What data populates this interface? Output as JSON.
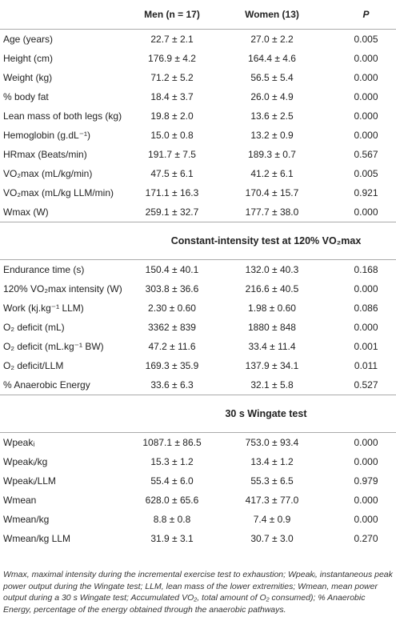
{
  "table": {
    "header": [
      "Men (n = 17)",
      "Women (13)",
      "P"
    ],
    "sections": [
      {
        "rows": [
          [
            "Age (years)",
            "22.7 ± 2.1",
            "27.0 ± 2.2",
            "0.005"
          ],
          [
            "Height (cm)",
            "176.9 ± 4.2",
            "164.4 ± 4.6",
            "0.000"
          ],
          [
            "Weight (kg)",
            "71.2 ± 5.2",
            "56.5 ± 5.4",
            "0.000"
          ],
          [
            "% body fat",
            "18.4 ± 3.7",
            "26.0 ± 4.9",
            "0.000"
          ],
          [
            "Lean mass of both legs (kg)",
            "19.8 ± 2.0",
            "13.6 ± 2.5",
            "0.000"
          ],
          [
            "Hemoglobin (g.dL⁻¹)",
            "15.0 ± 0.8",
            "13.2 ± 0.9",
            "0.000"
          ],
          [
            "HRmax (Beats/min)",
            "191.7 ± 7.5",
            "189.3 ± 0.7",
            "0.567"
          ],
          [
            "VO₂max (mL/kg/min)",
            "47.5 ± 6.1",
            "41.2 ± 6.1",
            "0.005"
          ],
          [
            "VO₂max (mL/kg LLM/min)",
            "171.1 ± 16.3",
            "170.4 ± 15.7",
            "0.921"
          ],
          [
            "Wmax (W)",
            "259.1 ± 32.7",
            "177.7 ± 38.0",
            "0.000"
          ]
        ]
      },
      {
        "title": "Constant-intensity test at 120% VO₂max",
        "rows": [
          [
            "Endurance time (s)",
            "150.4 ± 40.1",
            "132.0 ± 40.3",
            "0.168"
          ],
          [
            "120% VO₂max intensity (W)",
            "303.8 ± 36.6",
            "216.6 ± 40.5",
            "0.000"
          ],
          [
            "Work (kj.kg⁻¹ LLM)",
            "2.30 ± 0.60",
            "1.98 ± 0.60",
            "0.086"
          ],
          [
            "O₂ deficit (mL)",
            "3362 ± 839",
            "1880 ± 848",
            "0.000"
          ],
          [
            "O₂ deficit (mL.kg⁻¹ BW)",
            "47.2 ± 11.6",
            "33.4 ± 11.4",
            "0.001"
          ],
          [
            "O₂ deficit/LLM",
            "169.3 ± 35.9",
            "137.9 ± 34.1",
            "0.011"
          ],
          [
            "% Anaerobic Energy",
            "33.6 ± 6.3",
            "32.1 ± 5.8",
            "0.527"
          ]
        ]
      },
      {
        "title": "30 s Wingate test",
        "rows": [
          [
            "Wpeakᵢ",
            "1087.1 ± 86.5",
            "753.0 ± 93.4",
            "0.000"
          ],
          [
            "Wpeakᵢ/kg",
            "15.3 ± 1.2",
            "13.4 ± 1.2",
            "0.000"
          ],
          [
            "Wpeakᵢ/LLM",
            "55.4 ± 6.0",
            "55.3 ± 6.5",
            "0.979"
          ],
          [
            "Wmean",
            "628.0 ± 65.6",
            "417.3 ± 77.0",
            "0.000"
          ],
          [
            "Wmean/kg",
            "8.8 ± 0.8",
            "7.4 ± 0.9",
            "0.000"
          ],
          [
            "Wmean/kg LLM",
            "31.9 ± 3.1",
            "30.7 ± 3.0",
            "0.270"
          ]
        ]
      }
    ],
    "footnote": "Wmax, maximal intensity during the incremental exercise test to exhaustion; Wpeakᵢ, instantaneous peak power output during the Wingate test; LLM, lean mass of the lower extremities; Wmean, mean power output during a 30 s Wingate test; Accumulated VO₂, total amount of O₂ consumed); % Anaerobic Energy, percentage of the energy obtained through the anaerobic pathways."
  }
}
